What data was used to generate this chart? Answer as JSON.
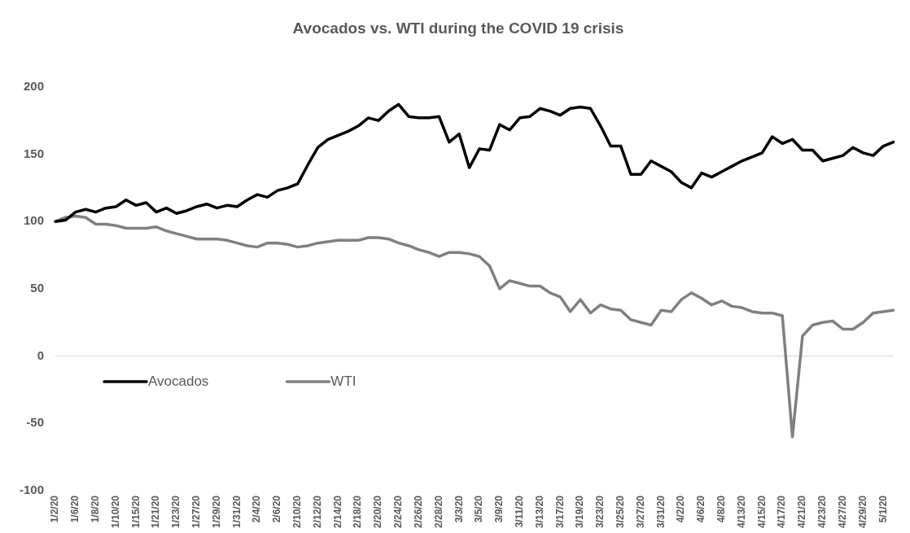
{
  "chart_data": {
    "type": "line",
    "title": "Avocados vs. WTI during the COVID 19 crisis",
    "categories": [
      "1/2/20",
      null,
      "1/6/20",
      null,
      "1/8/20",
      null,
      "1/10/20",
      null,
      "1/15/20",
      null,
      "1/21/20",
      null,
      "1/23/20",
      null,
      "1/27/20",
      null,
      "1/29/20",
      null,
      "1/31/20",
      null,
      "2/4/20",
      null,
      "2/6/20",
      null,
      "2/10/20",
      null,
      "2/12/20",
      null,
      "2/14/20",
      null,
      "2/18/20",
      null,
      "2/20/20",
      null,
      "2/24/20",
      null,
      "2/26/20",
      null,
      "2/28/20",
      null,
      "3/3/20",
      null,
      "3/5/20",
      null,
      "3/9/20",
      null,
      "3/11/20",
      null,
      "3/13/20",
      null,
      "3/17/20",
      null,
      "3/19/20",
      null,
      "3/23/20",
      null,
      "3/25/20",
      null,
      "3/27/20",
      null,
      "3/31/20",
      null,
      "4/2/20",
      null,
      "4/6/20",
      null,
      "4/8/20",
      null,
      "4/13/20",
      null,
      "4/15/20",
      null,
      "4/17/20",
      null,
      "4/21/20",
      null,
      "4/23/20",
      null,
      "4/27/20",
      null,
      "4/29/20",
      null,
      "5/1/20",
      null
    ],
    "series": [
      {
        "name": "Avocados",
        "color": "#000000",
        "values": [
          100,
          101,
          107,
          109,
          107,
          110,
          111,
          116,
          112,
          114,
          107,
          110,
          106,
          108,
          111,
          113,
          110,
          112,
          111,
          116,
          120,
          118,
          123,
          125,
          128,
          142,
          155,
          161,
          164,
          167,
          171,
          177,
          175,
          182,
          187,
          178,
          177,
          177,
          178,
          159,
          165,
          140,
          154,
          153,
          172,
          168,
          177,
          178,
          184,
          182,
          179,
          184,
          185,
          184,
          171,
          156,
          156,
          135,
          135,
          145,
          141,
          137,
          129,
          125,
          136,
          133,
          137,
          141,
          145,
          148,
          151,
          163,
          158,
          161,
          153,
          153,
          145,
          147,
          149,
          155,
          151,
          149,
          156,
          159
        ]
      },
      {
        "name": "WTI",
        "color": "#808080",
        "values": [
          100,
          103,
          104,
          103,
          98,
          98,
          97,
          95,
          95,
          95,
          96,
          93,
          91,
          89,
          87,
          87,
          87,
          86,
          84,
          82,
          81,
          84,
          84,
          83,
          81,
          82,
          84,
          85,
          86,
          86,
          86,
          88,
          88,
          87,
          84,
          82,
          79,
          77,
          74,
          77,
          77,
          76,
          74,
          67,
          50,
          56,
          54,
          52,
          52,
          47,
          44,
          33,
          42,
          32,
          38,
          35,
          34,
          27,
          25,
          23,
          34,
          33,
          42,
          47,
          43,
          38,
          41,
          37,
          36,
          33,
          32,
          32,
          30,
          -60,
          15,
          23,
          25,
          26,
          20,
          20,
          25,
          32,
          33,
          34
        ]
      }
    ],
    "ylim": [
      -100,
      200
    ],
    "yticks": [
      -100,
      -50,
      0,
      50,
      100,
      150,
      200
    ],
    "grid": false,
    "ref_lines": [
      {
        "axis": "y",
        "value": 0,
        "color": "#d9d9d9"
      }
    ],
    "legend": "bottom left",
    "marker": "none",
    "line_style": "solid"
  }
}
